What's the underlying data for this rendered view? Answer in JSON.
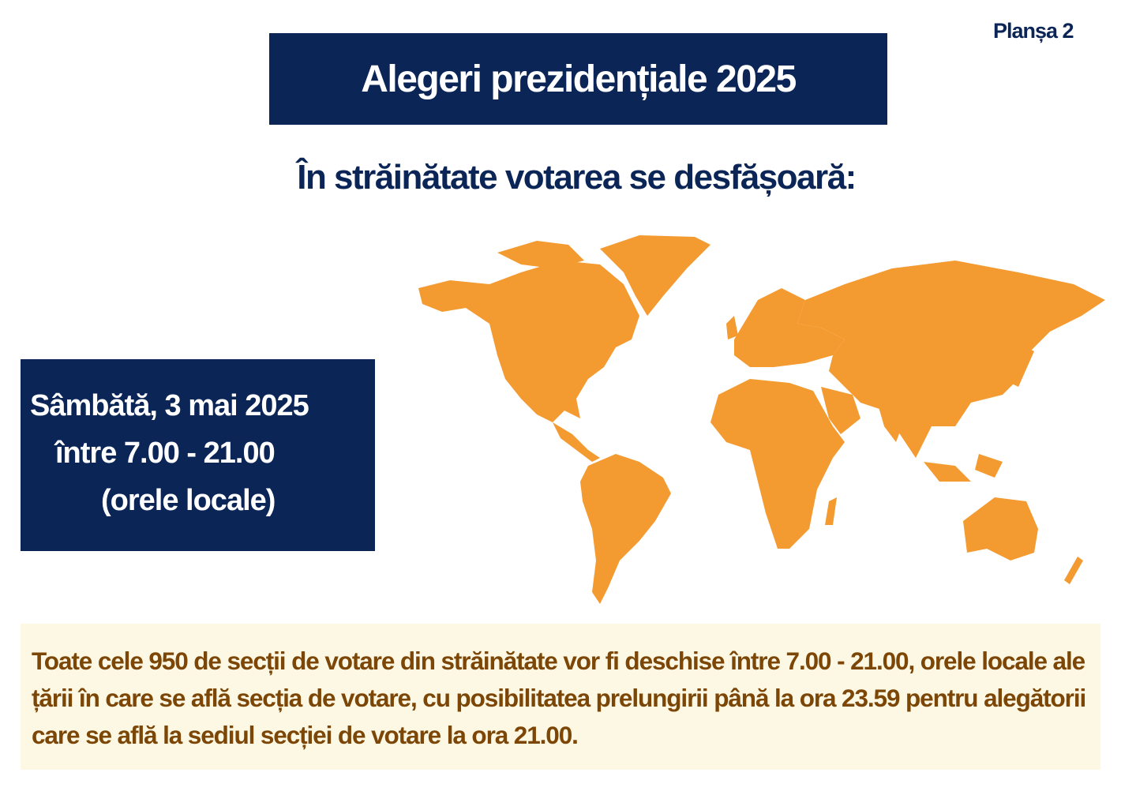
{
  "sheet_label": "Planșa 2",
  "title": "Alegeri prezidențiale 2025",
  "subtitle": "În străinătate votarea se desfășoară:",
  "schedule": {
    "date": "Sâmbătă, 3 mai 2025",
    "hours": "între 7.00 - 21.00",
    "note": "(orele locale)"
  },
  "map": {
    "icon": "world-map",
    "color": "#f39a30"
  },
  "info_text": "Toate cele 950 de secții de votare din străinătate vor fi deschise între 7.00 - 21.00, orele locale ale țării în care se află secția de votare, cu posibilitatea prelungirii până la ora 23.59 pentru alegătorii care se află la sediul secției de votare la ora 21.00.",
  "colors": {
    "navy": "#0b2557",
    "orange": "#f39a30",
    "brown_text": "#7c4606",
    "note_bg": "#fdf8e3"
  }
}
